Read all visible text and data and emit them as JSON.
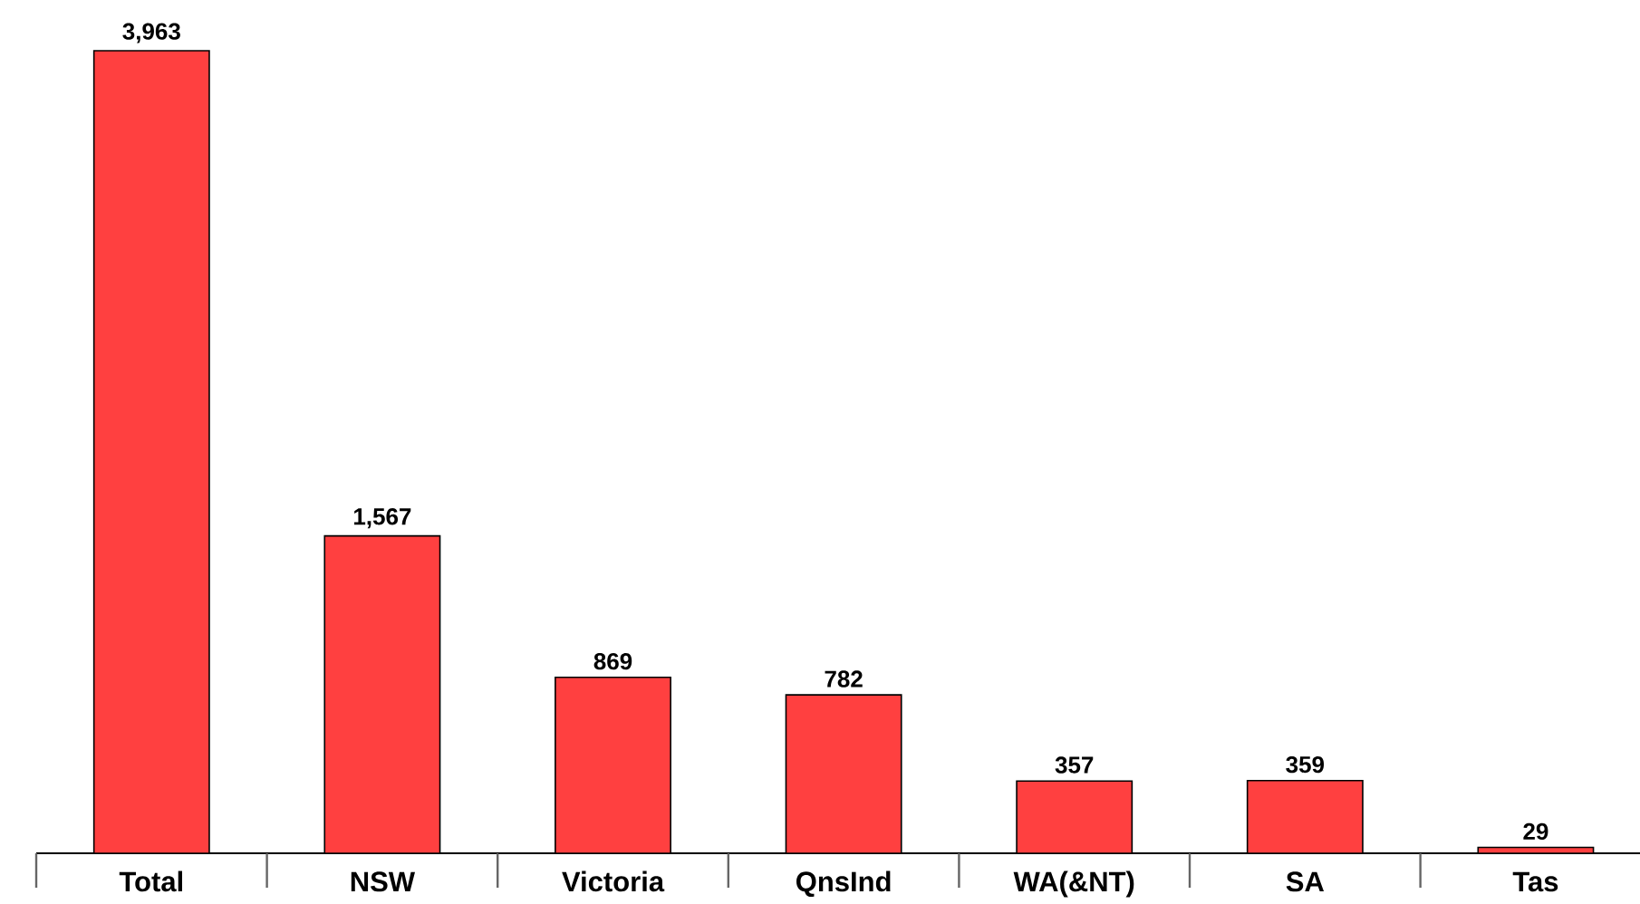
{
  "chart_data": {
    "type": "bar",
    "categories": [
      "Total",
      "NSW",
      "Victoria",
      "QnsInd",
      "WA(&NT)",
      "SA",
      "Tas"
    ],
    "values": [
      3963,
      1567,
      869,
      782,
      357,
      359,
      29
    ],
    "value_labels": [
      "3,963",
      "1,567",
      "869",
      "782",
      "357",
      "359",
      "29"
    ],
    "color": "#ff4040"
  }
}
